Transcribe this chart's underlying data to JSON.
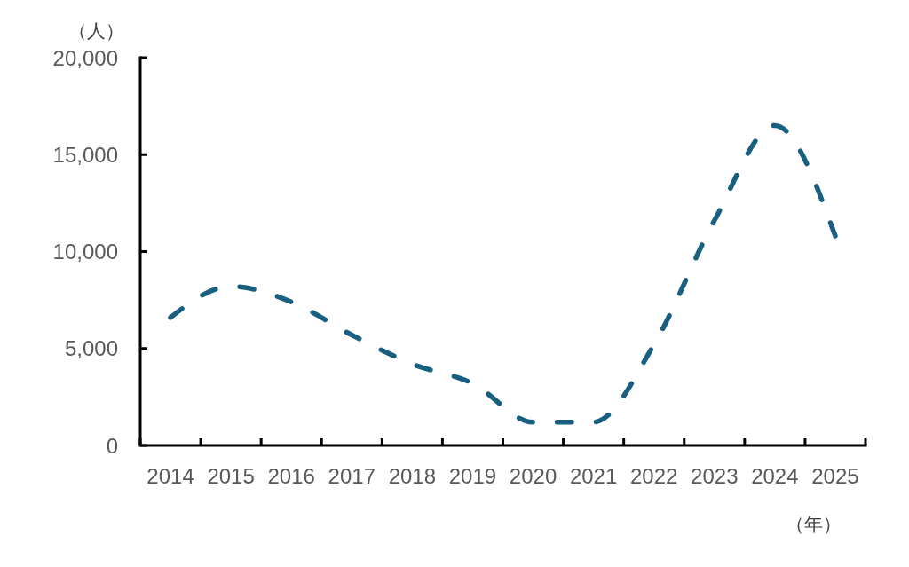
{
  "chart_data": {
    "type": "line",
    "ylabel": "（人）",
    "xlabel": "（年）",
    "categories": [
      "2014",
      "2015",
      "2016",
      "2017",
      "2018",
      "2019",
      "2020",
      "2021",
      "2022",
      "2023",
      "2024",
      "2025"
    ],
    "series": [
      {
        "color": "#185f80",
        "values": [
          6600,
          8200,
          7400,
          5700,
          4200,
          3200,
          1200,
          1200,
          5200,
          11600,
          16500,
          10800
        ]
      }
    ],
    "ylim": [
      0,
      20000
    ],
    "yticks": [
      0,
      {
        "value": 5000,
        "label": "5,000"
      },
      {
        "value": 10000,
        "label": "10,000"
      },
      {
        "value": 15000,
        "label": "15,000"
      },
      {
        "value": 20000,
        "label": "20,000"
      }
    ],
    "grid": false,
    "marker": "none",
    "line_style": "dashed"
  }
}
